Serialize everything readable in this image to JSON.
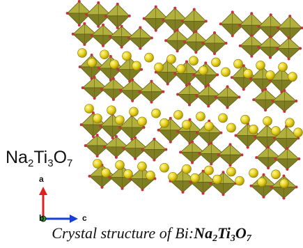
{
  "diagram": {
    "formula": {
      "a": "Na",
      "b": "2",
      "c": "Ti",
      "d": "3",
      "e": "O",
      "f": "7"
    },
    "axes": {
      "a": "a",
      "b": "b",
      "c": "c"
    },
    "caption": {
      "text": "Crystal structure of Bi:",
      "formula": {
        "a": "Na",
        "b": "2",
        "c": "Ti",
        "d": "3",
        "e": "O",
        "f": "7"
      }
    },
    "colors": {
      "octahedra": "#9b9a2e",
      "octahedra_edge": "#5f5e18",
      "sodium_atom": "#e6d21a",
      "oxygen_atom": "#c8323c",
      "axis_a": "#e02020",
      "axis_c": "#1a3fd6",
      "axis_b": "#2a9a2a"
    }
  }
}
